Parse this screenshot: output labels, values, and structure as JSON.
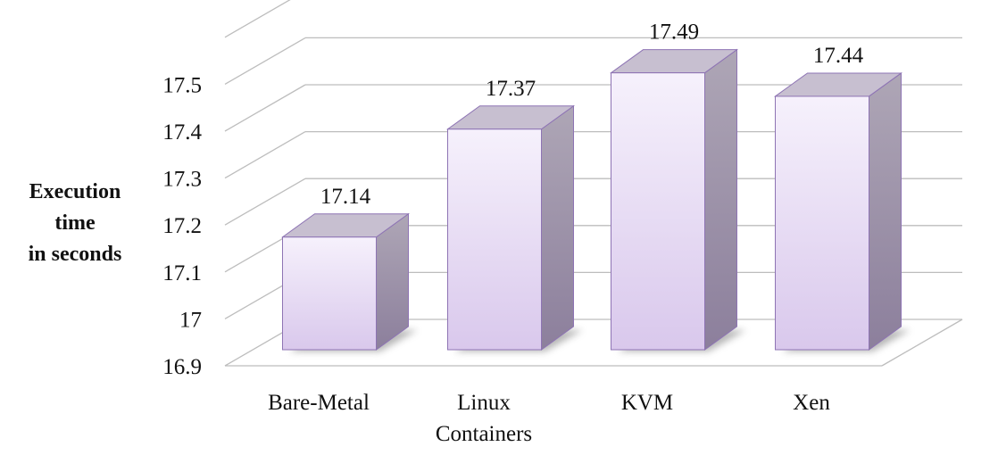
{
  "chart_data": {
    "type": "bar",
    "style": "3d-column",
    "categories": [
      [
        "Bare-Metal"
      ],
      [
        "Linux",
        "Containers"
      ],
      [
        "KVM"
      ],
      [
        "Xen"
      ]
    ],
    "values": [
      17.14,
      17.37,
      17.49,
      17.44
    ],
    "data_labels": [
      "17.14",
      "17.37",
      "17.49",
      "17.44"
    ],
    "ylabel": [
      "Execution",
      "time",
      "in seconds"
    ],
    "yticks": [
      "16.9",
      "17",
      "17.1",
      "17.2",
      "17.3",
      "17.4",
      "17.5"
    ],
    "tick_values": [
      16.9,
      17.0,
      17.1,
      17.2,
      17.3,
      17.4,
      17.5
    ],
    "ylim": [
      16.9,
      17.6
    ],
    "grid": true,
    "legend": "none",
    "colors": {
      "bar_front_top": "#f6f1fc",
      "bar_front_bottom": "#d9c8ec",
      "bar_top": "#c7bfd0",
      "bar_side_light": "#aea6b6",
      "bar_side_dark": "#8c7f9c",
      "bar_stroke": "#8e74b4",
      "grid": "#bdbdbd",
      "floor_shadow": "#7a7a7a"
    }
  }
}
